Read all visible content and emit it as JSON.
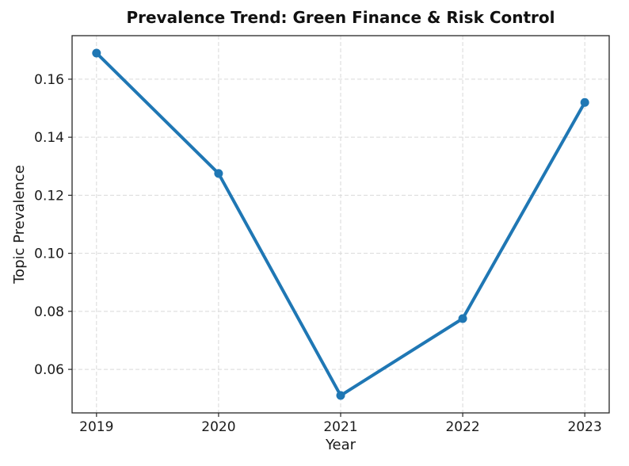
{
  "chart_data": {
    "type": "line",
    "title": "Prevalence Trend: Green Finance & Risk Control",
    "xlabel": "Year",
    "ylabel": "Topic Prevalence",
    "x": [
      2019,
      2020,
      2021,
      2022,
      2023
    ],
    "xtick_labels": [
      "2019",
      "2020",
      "2021",
      "2022",
      "2023"
    ],
    "series": [
      {
        "name": "Topic Prevalence",
        "values": [
          0.169,
          0.1275,
          0.051,
          0.0775,
          0.152
        ]
      }
    ],
    "xlim": [
      2018.8,
      2023.2
    ],
    "ylim": [
      0.045,
      0.175
    ],
    "yticks": [
      0.06,
      0.08,
      0.1,
      0.12,
      0.14,
      0.16
    ],
    "ytick_labels": [
      "0.06",
      "0.08",
      "0.10",
      "0.12",
      "0.14",
      "0.16"
    ],
    "grid": true,
    "grid_style": "dashed",
    "legend": "none",
    "colors": {
      "line": "#1f77b4",
      "marker": "#1f77b4",
      "grid": "#d9d9d9",
      "spine": "#262626",
      "tick": "#262626",
      "text": "#1a1a1a",
      "background": "#ffffff"
    }
  }
}
